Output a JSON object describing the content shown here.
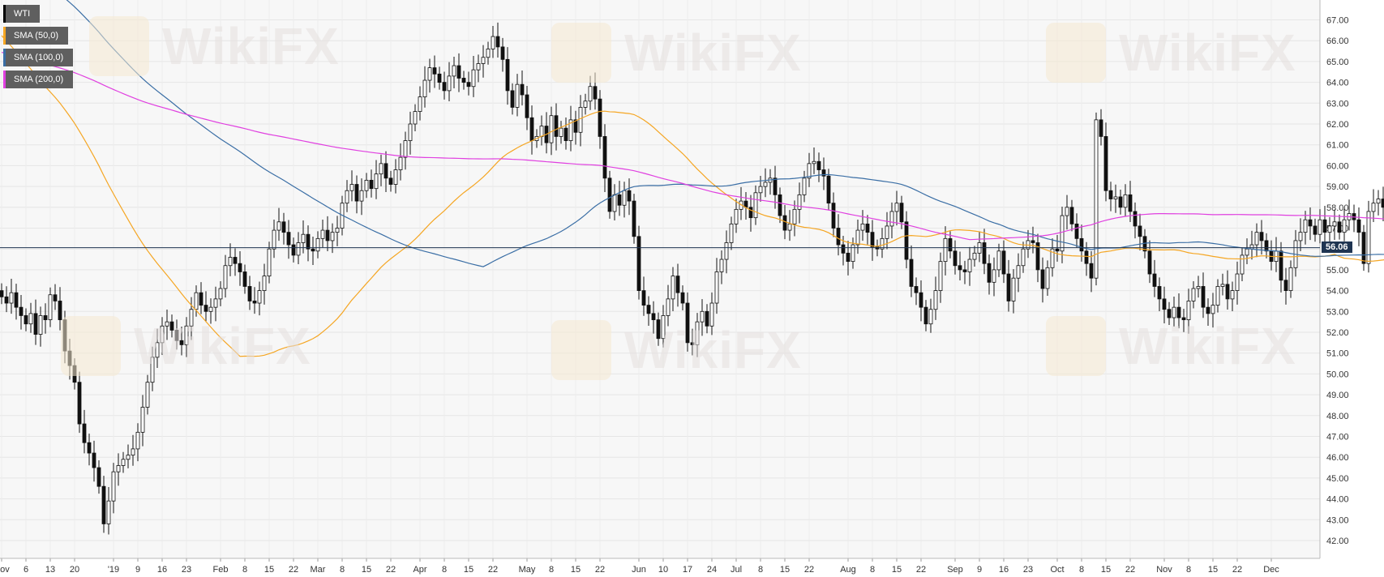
{
  "legend": [
    {
      "label": "WTI",
      "color": "#000000"
    },
    {
      "label": "SMA (50,0)",
      "color": "#f5a623"
    },
    {
      "label": "SMA (100,0)",
      "color": "#3a6ea5"
    },
    {
      "label": "SMA (200,0)",
      "color": "#e040e0"
    }
  ],
  "price_label": "56.06",
  "watermark": "WikiFX",
  "chart_data": {
    "type": "candlestick",
    "title": "",
    "xlabel": "",
    "ylabel": "",
    "ylim": [
      41.6,
      67.4
    ],
    "y_ticks": [
      "42.00",
      "43.00",
      "44.00",
      "45.00",
      "46.00",
      "47.00",
      "48.00",
      "49.00",
      "50.00",
      "51.00",
      "52.00",
      "53.00",
      "54.00",
      "55.00",
      "56.00",
      "57.00",
      "58.00",
      "59.00",
      "60.00",
      "61.00",
      "62.00",
      "63.00",
      "64.00",
      "65.00",
      "66.00",
      "67.00"
    ],
    "x_ticks": [
      {
        "label": "Nov",
        "i": 0
      },
      {
        "label": "6",
        "i": 5
      },
      {
        "label": "13",
        "i": 10
      },
      {
        "label": "20",
        "i": 15
      },
      {
        "label": "'19",
        "i": 23
      },
      {
        "label": "9",
        "i": 28
      },
      {
        "label": "16",
        "i": 33
      },
      {
        "label": "23",
        "i": 38
      },
      {
        "label": "Feb",
        "i": 45
      },
      {
        "label": "8",
        "i": 50
      },
      {
        "label": "15",
        "i": 55
      },
      {
        "label": "22",
        "i": 60
      },
      {
        "label": "Mar",
        "i": 65
      },
      {
        "label": "8",
        "i": 70
      },
      {
        "label": "15",
        "i": 75
      },
      {
        "label": "22",
        "i": 80
      },
      {
        "label": "Apr",
        "i": 86
      },
      {
        "label": "8",
        "i": 91
      },
      {
        "label": "15",
        "i": 96
      },
      {
        "label": "22",
        "i": 101
      },
      {
        "label": "May",
        "i": 108
      },
      {
        "label": "8",
        "i": 113
      },
      {
        "label": "15",
        "i": 118
      },
      {
        "label": "22",
        "i": 123
      },
      {
        "label": "Jun",
        "i": 131
      },
      {
        "label": "10",
        "i": 136
      },
      {
        "label": "17",
        "i": 141
      },
      {
        "label": "24",
        "i": 146
      },
      {
        "label": "Jul",
        "i": 151
      },
      {
        "label": "8",
        "i": 156
      },
      {
        "label": "15",
        "i": 161
      },
      {
        "label": "22",
        "i": 166
      },
      {
        "label": "Aug",
        "i": 174
      },
      {
        "label": "8",
        "i": 179
      },
      {
        "label": "15",
        "i": 184
      },
      {
        "label": "22",
        "i": 189
      },
      {
        "label": "Sep",
        "i": 196
      },
      {
        "label": "9",
        "i": 201
      },
      {
        "label": "16",
        "i": 206
      },
      {
        "label": "23",
        "i": 211
      },
      {
        "label": "Oct",
        "i": 217
      },
      {
        "label": "8",
        "i": 222
      },
      {
        "label": "15",
        "i": 227
      },
      {
        "label": "22",
        "i": 232
      },
      {
        "label": "Nov",
        "i": 239
      },
      {
        "label": "8",
        "i": 244
      },
      {
        "label": "15",
        "i": 249
      },
      {
        "label": "22",
        "i": 254
      },
      {
        "label": "Dec",
        "i": 261
      }
    ],
    "current_price": 56.06,
    "closes": [
      53.7,
      53.4,
      53.9,
      53.2,
      52.8,
      52.4,
      52.9,
      51.9,
      52.8,
      52.6,
      53.8,
      53.5,
      52.6,
      51.1,
      50.4,
      49.6,
      47.6,
      46.7,
      46.2,
      45.5,
      44.6,
      42.8,
      43.9,
      45.3,
      45.6,
      45.9,
      46.1,
      46.4,
      47.2,
      48.4,
      49.6,
      50.8,
      51.5,
      52.3,
      52.5,
      52.1,
      51.6,
      51.4,
      52.3,
      53.1,
      53.9,
      53.3,
      53.0,
      53.2,
      53.6,
      54.1,
      55.2,
      55.6,
      55.3,
      54.9,
      54.2,
      53.5,
      53.4,
      54.0,
      54.7,
      56.0,
      56.9,
      57.3,
      56.8,
      56.2,
      55.7,
      56.3,
      56.7,
      56.0,
      55.9,
      56.5,
      56.9,
      56.4,
      56.8,
      57.0,
      58.2,
      58.8,
      59.1,
      58.3,
      58.8,
      59.3,
      58.9,
      59.6,
      60.1,
      59.4,
      59.1,
      59.8,
      60.4,
      61.2,
      62.0,
      62.6,
      63.3,
      64.1,
      64.7,
      64.4,
      64.0,
      63.6,
      64.3,
      64.8,
      64.2,
      64.0,
      63.8,
      64.6,
      64.9,
      65.2,
      65.6,
      66.2,
      65.7,
      65.1,
      63.6,
      62.8,
      63.9,
      63.4,
      62.3,
      61.2,
      61.4,
      61.9,
      61.1,
      62.4,
      61.4,
      61.8,
      61.2,
      62.2,
      61.6,
      62.8,
      63.1,
      63.8,
      63.2,
      61.4,
      59.4,
      57.8,
      58.6,
      58.1,
      58.8,
      58.3,
      56.6,
      54.0,
      53.3,
      52.9,
      52.6,
      51.7,
      52.8,
      53.6,
      54.7,
      53.9,
      53.4,
      51.5,
      51.4,
      52.5,
      53.0,
      52.3,
      53.4,
      54.9,
      55.5,
      56.3,
      57.2,
      57.9,
      58.3,
      58.0,
      57.5,
      58.7,
      59.0,
      59.2,
      59.4,
      58.6,
      57.6,
      56.9,
      57.2,
      57.9,
      58.6,
      59.4,
      60.1,
      60.2,
      59.8,
      59.5,
      58.2,
      57.0,
      56.2,
      55.8,
      55.4,
      56.2,
      56.9,
      57.2,
      56.8,
      56.1,
      56.0,
      56.5,
      57.1,
      57.8,
      58.2,
      57.3,
      55.5,
      54.2,
      53.9,
      53.2,
      52.4,
      53.1,
      54.0,
      55.4,
      56.5,
      55.9,
      55.2,
      55.0,
      54.9,
      55.5,
      55.8,
      56.3,
      55.3,
      54.4,
      55.0,
      55.9,
      54.8,
      53.5,
      54.6,
      55.2,
      56.0,
      56.4,
      56.3,
      55.0,
      54.1,
      55.1,
      56.0,
      55.9,
      57.6,
      58.0,
      57.2,
      56.5,
      55.9,
      55.3,
      54.6,
      62.2,
      61.4,
      58.8,
      58.4,
      58.5,
      58.0,
      58.6,
      57.8,
      57.1,
      56.6,
      55.9,
      54.8,
      54.2,
      53.6,
      53.1,
      52.7,
      53.2,
      52.7,
      52.6,
      53.5,
      54.1,
      54.2,
      53.2,
      52.9,
      53.3,
      54.2,
      54.3,
      53.6,
      54.0,
      54.8,
      55.7,
      56.0,
      56.2,
      56.8,
      56.4,
      55.9,
      55.4,
      55.9,
      54.5,
      54.0,
      55.1,
      56.4,
      56.8,
      57.4,
      57.1,
      56.7,
      57.4,
      56.8,
      57.1,
      57.3,
      56.8,
      57.4,
      57.7,
      57.4,
      56.8,
      55.3,
      57.8,
      58.2,
      58.4,
      58.0,
      57.9,
      58.3,
      58.2,
      58.1,
      55.2,
      56.06
    ]
  }
}
